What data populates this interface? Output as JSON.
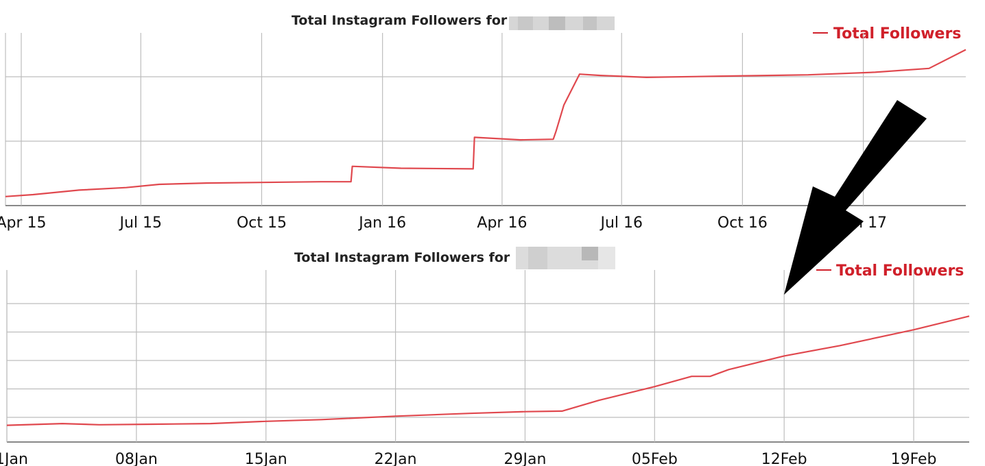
{
  "colors": {
    "series": "#e0484e",
    "legend": "#d0202a",
    "arrow": "#000000"
  },
  "chart_data": [
    {
      "type": "line",
      "title": "Total Instagram Followers for",
      "xlabel": "",
      "ylabel": "",
      "grid": true,
      "legend_position": "top-right",
      "x_ticks": [
        "Apr 15",
        "Jul 15",
        "Oct 15",
        "Jan 16",
        "Apr 16",
        "Jul 16",
        "Oct 16",
        "Jan 17"
      ],
      "xlim": [
        "2015-03-20",
        "2017-03-20"
      ],
      "ylim": [
        0,
        100
      ],
      "y_gridlines": [
        0,
        50,
        100
      ],
      "series": [
        {
          "name": "Total Followers",
          "x": [
            "2015-03-20",
            "2015-04-10",
            "2015-05-15",
            "2015-06-20",
            "2015-07-15",
            "2015-08-20",
            "2015-10-01",
            "2015-11-15",
            "2015-12-08",
            "2015-12-09",
            "2016-01-15",
            "2016-03-10",
            "2016-03-11",
            "2016-04-15",
            "2016-05-10",
            "2016-05-12",
            "2016-05-18",
            "2016-05-30",
            "2016-06-15",
            "2016-07-20",
            "2016-09-15",
            "2016-11-20",
            "2017-01-10",
            "2017-02-20",
            "2017-03-20"
          ],
          "values": [
            7,
            8.5,
            12,
            14,
            16.5,
            17.5,
            18,
            18.5,
            18.5,
            30.5,
            29,
            28.5,
            53,
            51,
            51.5,
            57.5,
            78,
            102,
            101,
            99.5,
            100.5,
            101.5,
            103.5,
            106.5,
            121
          ]
        }
      ]
    },
    {
      "type": "line",
      "title": "Total Instagram Followers for",
      "xlabel": "",
      "ylabel": "",
      "grid": true,
      "legend_position": "top-right",
      "x_ticks": [
        "01Jan",
        "08Jan",
        "15Jan",
        "22Jan",
        "29Jan",
        "05Feb",
        "12Feb",
        "19Feb"
      ],
      "xlim": [
        "2017-01-01",
        "2017-02-22"
      ],
      "ylim": [
        0,
        100
      ],
      "y_gridlines": [
        0,
        25,
        50,
        75,
        100
      ],
      "series": [
        {
          "name": "Total Followers",
          "x": [
            "2017-01-01",
            "2017-01-04",
            "2017-01-06",
            "2017-01-09",
            "2017-01-12",
            "2017-01-15",
            "2017-01-18",
            "2017-01-22",
            "2017-01-26",
            "2017-01-29",
            "2017-01-31",
            "2017-02-02",
            "2017-02-05",
            "2017-02-07",
            "2017-02-08",
            "2017-02-09",
            "2017-02-12",
            "2017-02-15",
            "2017-02-19",
            "2017-02-22"
          ],
          "values": [
            -7,
            -5.5,
            -6.5,
            -6,
            -5.5,
            -3.5,
            -2,
            1,
            3.5,
            5,
            5.5,
            15,
            27,
            36,
            36,
            42,
            54,
            63,
            77,
            89
          ]
        }
      ]
    }
  ],
  "redacted_labels": [
    "",
    ""
  ]
}
